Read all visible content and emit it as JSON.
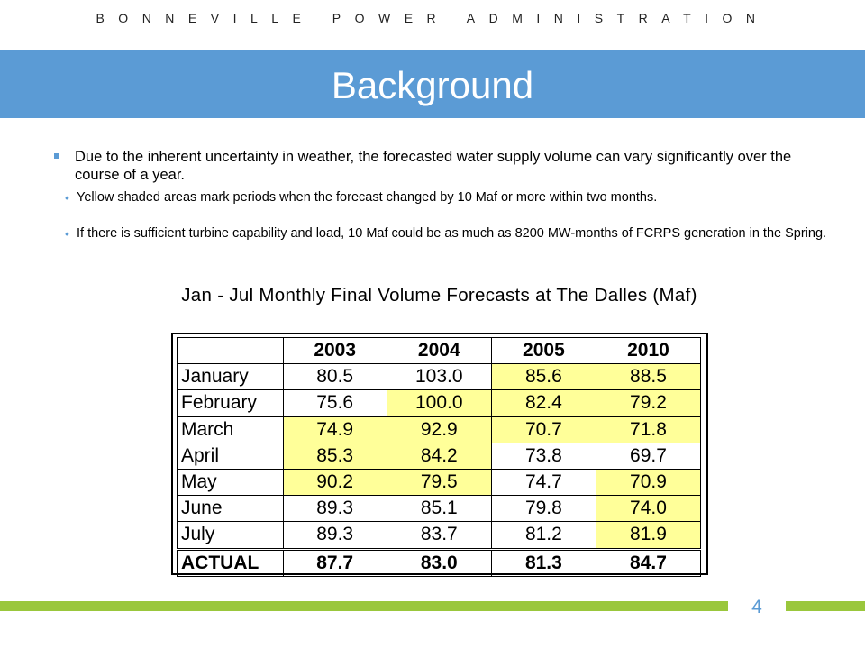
{
  "header": {
    "organization": "BONNEVILLE POWER ADMINISTRATION",
    "title": "Background",
    "accent_color": "#5b9bd5"
  },
  "content": {
    "bullet": "Due to the inherent uncertainty in weather, the forecasted water supply volume can vary significantly over the course of a year.",
    "sub_bullets": [
      "Yellow shaded areas mark periods when the forecast changed by 10 Maf or more within two months.",
      "If there is sufficient turbine capability and load, 10 Maf could be as much as 8200 MW-months of FCRPS generation in the Spring."
    ]
  },
  "table": {
    "title": "Jan - Jul Monthly Final Volume Forecasts at The Dalles (Maf)",
    "highlight_color": "#ffff99",
    "columns": [
      "2003",
      "2004",
      "2005",
      "2010"
    ],
    "rows": [
      {
        "label": "January",
        "values": [
          "80.5",
          "103.0",
          "85.6",
          "88.5"
        ],
        "highlight": [
          false,
          false,
          true,
          true
        ]
      },
      {
        "label": "February",
        "values": [
          "75.6",
          "100.0",
          "82.4",
          "79.2"
        ],
        "highlight": [
          false,
          true,
          true,
          true
        ]
      },
      {
        "label": "March",
        "values": [
          "74.9",
          "92.9",
          "70.7",
          "71.8"
        ],
        "highlight": [
          true,
          true,
          true,
          true
        ]
      },
      {
        "label": "April",
        "values": [
          "85.3",
          "84.2",
          "73.8",
          "69.7"
        ],
        "highlight": [
          true,
          true,
          false,
          false
        ]
      },
      {
        "label": "May",
        "values": [
          "90.2",
          "79.5",
          "74.7",
          "70.9"
        ],
        "highlight": [
          true,
          true,
          false,
          true
        ]
      },
      {
        "label": "June",
        "values": [
          "89.3",
          "85.1",
          "79.8",
          "74.0"
        ],
        "highlight": [
          false,
          false,
          false,
          true
        ]
      },
      {
        "label": "July",
        "values": [
          "89.3",
          "83.7",
          "81.2",
          "81.9"
        ],
        "highlight": [
          false,
          false,
          false,
          true
        ]
      }
    ],
    "actual": {
      "label": "ACTUAL",
      "values": [
        "87.7",
        "83.0",
        "81.3",
        "84.7"
      ]
    }
  },
  "footer": {
    "page_number": "4",
    "bar_color": "#9ac73c"
  }
}
